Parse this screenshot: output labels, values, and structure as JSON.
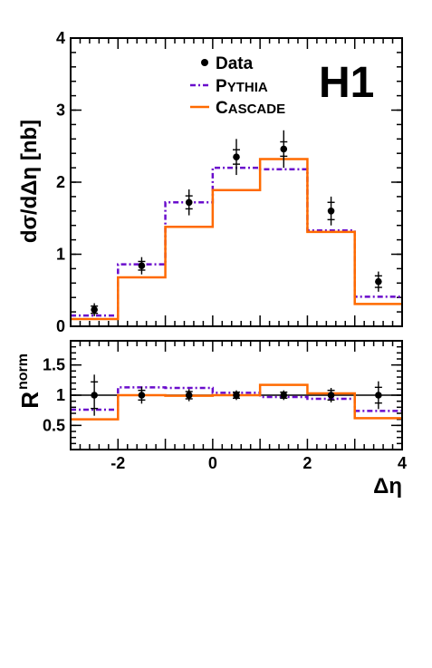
{
  "experiment_label": "H1",
  "colors": {
    "data": "#000000",
    "pythia": "#6a0dcc",
    "cascade": "#ff6a00"
  },
  "chart_data": {
    "type": "line",
    "xlabel": "Δη",
    "x_tick_labels": [
      "-2",
      "0",
      "2",
      "4"
    ],
    "x_ticks": [
      -2,
      0,
      2,
      4
    ],
    "xlim": [
      -3,
      4
    ],
    "bin_edges": [
      -3,
      -2,
      -1,
      0,
      1,
      2,
      3,
      4
    ],
    "bin_centers": [
      -2.5,
      -1.5,
      -0.5,
      0.5,
      1.5,
      2.5,
      3.5
    ],
    "legend": {
      "placement": "top-center",
      "entries": [
        {
          "key": "data",
          "text": "Data"
        },
        {
          "key": "pythia",
          "text_first": "P",
          "text_rest": "YTHIA"
        },
        {
          "key": "cascade",
          "text_first": "C",
          "text_rest": "ASCADE"
        }
      ]
    },
    "panels": [
      {
        "id": "main",
        "ylabel": "dσ/dΔη [nb]",
        "ylim": [
          0,
          4
        ],
        "y_ticks": [
          0,
          1,
          2,
          3,
          4
        ],
        "y_tick_labels": [
          "0",
          "1",
          "2",
          "3",
          "4"
        ],
        "series": [
          {
            "key": "data",
            "type": "points",
            "values": [
              0.23,
              0.84,
              1.72,
              2.35,
              2.46,
              1.6,
              0.62
            ],
            "stat_err": [
              0.05,
              0.06,
              0.09,
              0.1,
              0.1,
              0.12,
              0.08
            ],
            "tot_err": [
              0.09,
              0.12,
              0.18,
              0.25,
              0.26,
              0.2,
              0.14
            ]
          },
          {
            "key": "pythia",
            "type": "step",
            "values": [
              0.15,
              0.86,
              1.72,
              2.2,
              2.18,
              1.33,
              0.41
            ]
          },
          {
            "key": "cascade",
            "type": "step",
            "values": [
              0.1,
              0.68,
              1.38,
              1.89,
              2.32,
              1.31,
              0.31
            ]
          }
        ]
      },
      {
        "id": "ratio",
        "ylabel_main": "R",
        "ylabel_sup": "norm",
        "ylim": [
          0.1,
          1.9
        ],
        "y_ticks": [
          0.5,
          1,
          1.5
        ],
        "y_tick_labels": [
          "0.5",
          "1",
          "1.5"
        ],
        "reference_line": 1,
        "series": [
          {
            "key": "data",
            "type": "points",
            "values": [
              1,
              1,
              1,
              1,
              1,
              1,
              1
            ],
            "stat_err": [
              0.22,
              0.08,
              0.06,
              0.05,
              0.05,
              0.08,
              0.13
            ],
            "tot_err": [
              0.34,
              0.14,
              0.1,
              0.08,
              0.08,
              0.12,
              0.23
            ]
          },
          {
            "key": "pythia",
            "type": "step",
            "values": [
              0.76,
              1.13,
              1.12,
              1.04,
              0.97,
              0.94,
              0.74
            ]
          },
          {
            "key": "cascade",
            "type": "step",
            "values": [
              0.6,
              1.0,
              0.99,
              1.0,
              1.17,
              1.03,
              0.62
            ]
          }
        ]
      }
    ]
  }
}
